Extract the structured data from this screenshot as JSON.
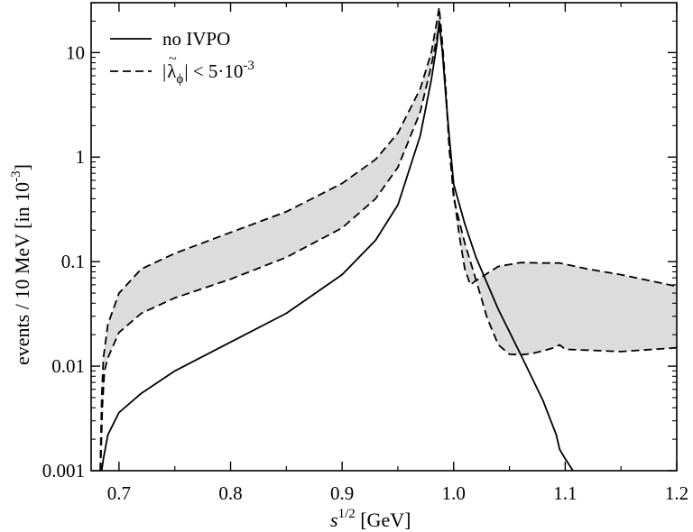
{
  "chart_data": {
    "type": "line",
    "title": "",
    "xlabel": {
      "italic": "s",
      "sup": "1/2",
      "rest": " [GeV]"
    },
    "ylabel": {
      "main": "events / 10 MeV [in 10",
      "sup": "-3",
      "end": "]"
    },
    "xlim": [
      0.675,
      1.2
    ],
    "ylim": [
      0.001,
      30
    ],
    "yscale": "log",
    "x_ticks": [
      0.7,
      0.8,
      0.9,
      1.0,
      1.1,
      1.2
    ],
    "x_tick_labels": [
      "0.7",
      "0.8",
      "0.9",
      "1.0",
      "1.1",
      "1.2"
    ],
    "y_ticks": [
      0.001,
      0.01,
      0.1,
      1,
      10
    ],
    "y_tick_labels": [
      "0.001",
      "0.01",
      "0.1",
      "1",
      "10"
    ],
    "legend": {
      "position": "top-left",
      "entries": [
        {
          "label": "no IVPO",
          "style": "solid"
        },
        {
          "label_abs_open": "|",
          "label_lambda": "λ",
          "label_tilde": "~",
          "label_sub": "ϕ",
          "label_abs_close": "| < 5·10",
          "label_sup": "-3",
          "style": "dashed"
        }
      ]
    },
    "series": [
      {
        "name": "no IVPO",
        "style": "solid",
        "x": [
          0.6845,
          0.686,
          0.69,
          0.7,
          0.72,
          0.75,
          0.8,
          0.85,
          0.9,
          0.93,
          0.95,
          0.97,
          0.98,
          0.985,
          0.987,
          0.99,
          0.993,
          0.996,
          1.0,
          1.01,
          1.02,
          1.04,
          1.06,
          1.08,
          1.092,
          1.095,
          1.1,
          1.107
        ],
        "y": [
          0.001,
          0.0013,
          0.0022,
          0.0036,
          0.0055,
          0.009,
          0.017,
          0.032,
          0.075,
          0.16,
          0.35,
          1.6,
          5.5,
          12,
          20,
          10,
          3.8,
          1.6,
          0.55,
          0.23,
          0.11,
          0.035,
          0.013,
          0.0047,
          0.0022,
          0.0016,
          0.0013,
          0.001
        ]
      },
      {
        "name": "upper bound",
        "style": "dashed",
        "x": [
          0.6832,
          0.6845,
          0.686,
          0.69,
          0.7,
          0.72,
          0.75,
          0.8,
          0.85,
          0.9,
          0.93,
          0.95,
          0.97,
          0.98,
          0.985,
          0.987,
          0.99,
          0.993,
          0.996,
          1.0,
          1.005,
          1.01,
          1.015,
          1.02,
          1.04,
          1.06,
          1.08,
          1.095,
          1.12,
          1.15,
          1.2
        ],
        "y": [
          0.001,
          0.005,
          0.012,
          0.025,
          0.05,
          0.085,
          0.12,
          0.19,
          0.3,
          0.56,
          0.95,
          1.7,
          4.5,
          10,
          20,
          27,
          12,
          4.5,
          1.2,
          0.45,
          0.18,
          0.085,
          0.06,
          0.066,
          0.09,
          0.098,
          0.097,
          0.097,
          0.085,
          0.075,
          0.058
        ]
      },
      {
        "name": "lower bound",
        "style": "dashed",
        "x": [
          0.6835,
          0.685,
          0.687,
          0.69,
          0.7,
          0.72,
          0.75,
          0.8,
          0.85,
          0.9,
          0.93,
          0.95,
          0.97,
          0.98,
          0.985,
          0.987,
          0.99,
          0.993,
          0.996,
          1.0,
          1.01,
          1.02,
          1.03,
          1.04,
          1.05,
          1.06,
          1.07,
          1.08,
          1.09,
          1.095,
          1.1,
          1.15,
          1.2
        ],
        "y": [
          0.001,
          0.004,
          0.009,
          0.012,
          0.021,
          0.032,
          0.045,
          0.068,
          0.11,
          0.21,
          0.4,
          0.8,
          2.7,
          7.5,
          14,
          18,
          10,
          4.0,
          1.4,
          0.4,
          0.15,
          0.067,
          0.029,
          0.016,
          0.013,
          0.0128,
          0.0132,
          0.014,
          0.015,
          0.016,
          0.0145,
          0.0138,
          0.015
        ]
      }
    ]
  }
}
